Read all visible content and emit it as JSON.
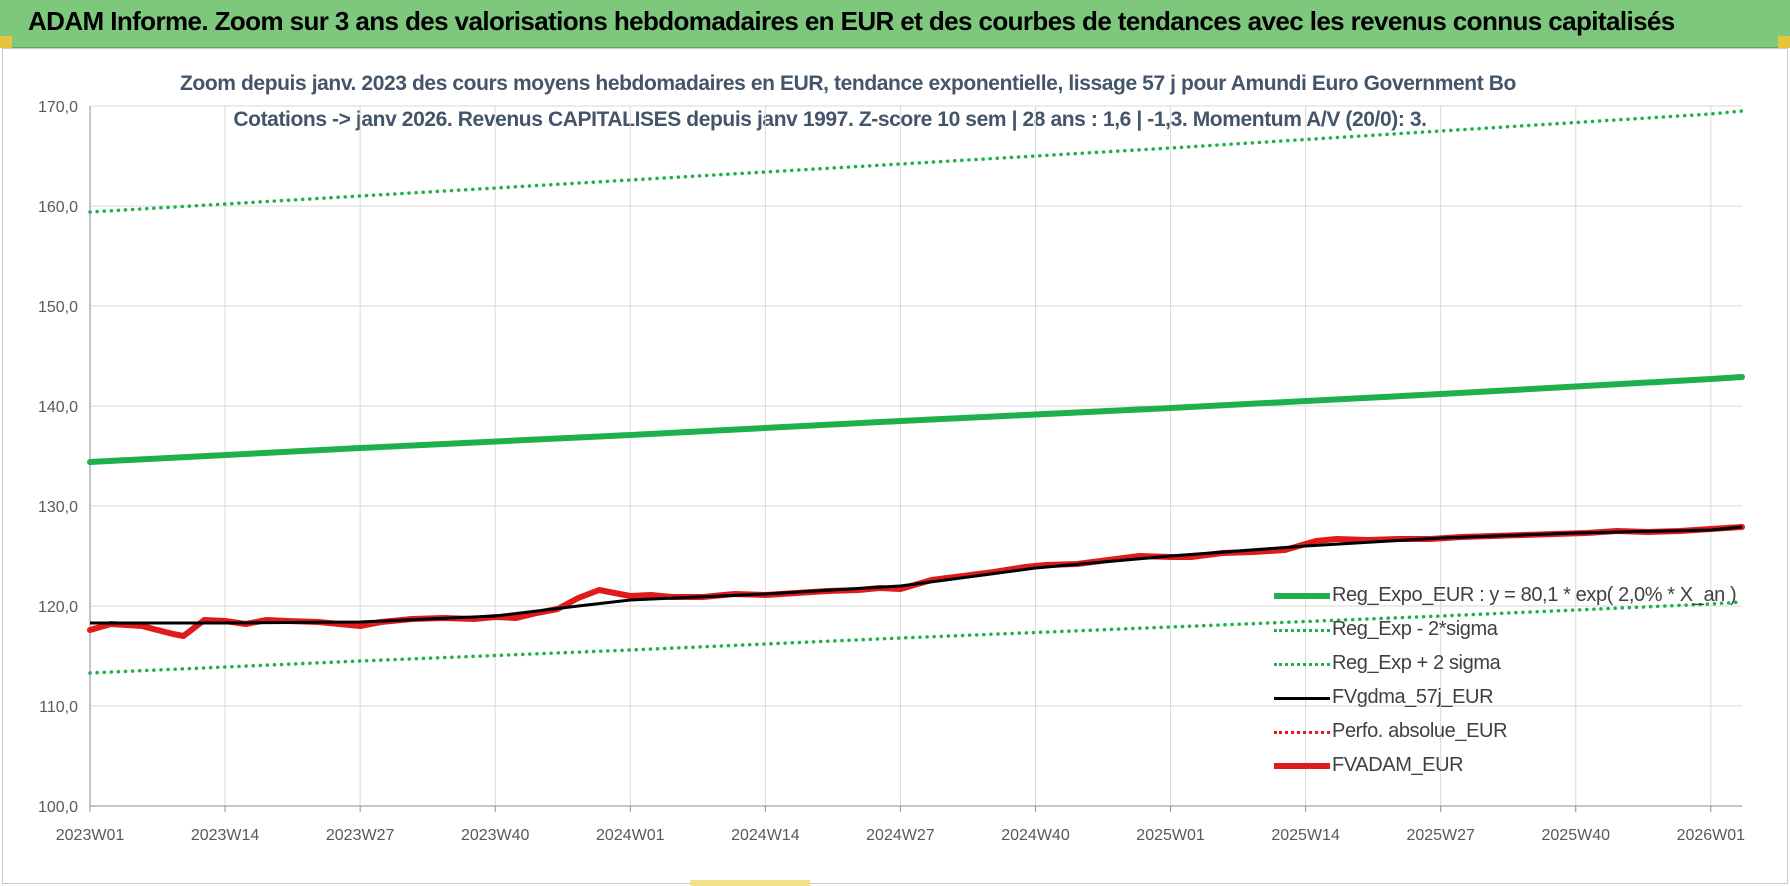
{
  "banner": {
    "title": "ADAM Informe. Zoom sur 3 ans des valorisations hebdomadaires en EUR et des courbes de tendances avec les revenus connus capitalisés",
    "color": "#7ec87e"
  },
  "chart_data": {
    "type": "line",
    "title_line1": "Zoom depuis janv. 2023 des cours moyens hebdomadaires en EUR, tendance exponentielle, lissage 57 j pour Amundi Euro Government Bo",
    "title_line2": "Cotations -> janv 2026. Revenus CAPITALISES depuis janv 1997. Z-score 10 sem | 28 ans : 1,6 | -1,3. Momentum A/V (20/0): 3.",
    "xlabel": "",
    "ylabel": "",
    "ylim": [
      100,
      170
    ],
    "y_ticks": [
      "100,0",
      "110,0",
      "120,0",
      "130,0",
      "140,0",
      "150,0",
      "160,0",
      "170,0"
    ],
    "x_ticks": [
      "2023W01",
      "2023W14",
      "2023W27",
      "2023W40",
      "2024W01",
      "2024W14",
      "2024W27",
      "2024W40",
      "2025W01",
      "2025W14",
      "2025W27",
      "2025W40",
      "2026W01"
    ],
    "grid": true,
    "legend_position": "bottom-right",
    "series": [
      {
        "name": "Reg_Expo_EUR : y = 80,1 * exp( 2,0% * X_an )",
        "color": "#1db04d",
        "style": "solid-thick",
        "x": [
          "2023W01",
          "2023W27",
          "2024W01",
          "2024W27",
          "2025W01",
          "2025W27",
          "2026W01",
          "2026W04"
        ],
        "values": [
          134.4,
          135.8,
          137.1,
          138.5,
          139.8,
          141.2,
          142.7,
          142.9
        ]
      },
      {
        "name": "Reg_Exp - 2*sigma",
        "color": "#1db04d",
        "style": "dotted",
        "x": [
          "2023W01",
          "2023W27",
          "2024W01",
          "2024W27",
          "2025W01",
          "2025W27",
          "2026W01",
          "2026W04"
        ],
        "values": [
          113.3,
          114.5,
          115.6,
          116.8,
          117.9,
          119.0,
          120.2,
          120.4
        ]
      },
      {
        "name": "Reg_Exp + 2 sigma",
        "color": "#1db04d",
        "style": "dotted",
        "x": [
          "2023W01",
          "2023W27",
          "2024W01",
          "2024W27",
          "2025W01",
          "2025W27",
          "2026W01",
          "2026W04"
        ],
        "values": [
          159.4,
          161.0,
          162.6,
          164.2,
          165.8,
          167.5,
          169.2,
          169.5
        ]
      },
      {
        "name": "FVgdma_57j_EUR",
        "color": "#000000",
        "style": "solid",
        "x": [
          "2023W01",
          "2023W14",
          "2023W27",
          "2023W40",
          "2023W48",
          "2024W01",
          "2024W14",
          "2024W27",
          "2024W40",
          "2025W01",
          "2025W14",
          "2025W27",
          "2025W40",
          "2026W01",
          "2026W04"
        ],
        "values": [
          118.3,
          118.3,
          118.4,
          119.0,
          120.0,
          120.6,
          121.2,
          122.0,
          123.8,
          125.0,
          126.0,
          126.8,
          127.3,
          127.6,
          127.9
        ]
      },
      {
        "name": "Perfo. absolue_EUR",
        "color": "#e11b1b",
        "style": "dotted",
        "x": [],
        "values": []
      },
      {
        "name": "FVADAM_EUR",
        "color": "#e11b1b",
        "style": "solid-thick",
        "x": [
          "2023W01",
          "2023W03",
          "2023W06",
          "2023W09",
          "2023W10",
          "2023W12",
          "2023W14",
          "2023W16",
          "2023W18",
          "2023W20",
          "2023W23",
          "2023W27",
          "2023W29",
          "2023W32",
          "2023W35",
          "2023W38",
          "2023W40",
          "2023W42",
          "2023W44",
          "2023W46",
          "2023W48",
          "2023W50",
          "2024W01",
          "2024W03",
          "2024W05",
          "2024W08",
          "2024W11",
          "2024W14",
          "2024W17",
          "2024W20",
          "2024W23",
          "2024W25",
          "2024W27",
          "2024W30",
          "2024W33",
          "2024W36",
          "2024W39",
          "2024W41",
          "2024W44",
          "2024W47",
          "2024W50",
          "2025W01",
          "2025W03",
          "2025W06",
          "2025W09",
          "2025W12",
          "2025W15",
          "2025W17",
          "2025W20",
          "2025W23",
          "2025W26",
          "2025W29",
          "2025W32",
          "2025W35",
          "2025W38",
          "2025W41",
          "2025W44",
          "2025W47",
          "2025W50",
          "2026W01",
          "2026W04"
        ],
        "values": [
          117.6,
          118.2,
          118.0,
          117.2,
          117.0,
          118.6,
          118.5,
          118.2,
          118.6,
          118.5,
          118.4,
          118.0,
          118.4,
          118.7,
          118.8,
          118.7,
          118.9,
          118.8,
          119.3,
          119.7,
          120.8,
          121.6,
          121.0,
          121.1,
          120.9,
          120.9,
          121.2,
          121.1,
          121.3,
          121.5,
          121.6,
          121.8,
          121.7,
          122.6,
          123.0,
          123.4,
          123.9,
          124.1,
          124.2,
          124.6,
          125.0,
          124.9,
          124.9,
          125.3,
          125.4,
          125.6,
          126.5,
          126.7,
          126.6,
          126.7,
          126.7,
          126.9,
          127.0,
          127.1,
          127.2,
          127.3,
          127.5,
          127.4,
          127.5,
          127.7,
          127.9
        ]
      }
    ]
  },
  "legend": {
    "items": [
      {
        "label": "Reg_Expo_EUR : y = 80,1 * exp( 2,0% *  X_an )",
        "color": "#1db04d",
        "style": "solid-thick"
      },
      {
        "label": "Reg_Exp - 2*sigma",
        "color": "#1db04d",
        "style": "dotted"
      },
      {
        "label": "Reg_Exp + 2 sigma",
        "color": "#1db04d",
        "style": "dotted"
      },
      {
        "label": "FVgdma_57j_EUR",
        "color": "#000000",
        "style": "solid"
      },
      {
        "label": "Perfo. absolue_EUR",
        "color": "#e11b1b",
        "style": "dotted"
      },
      {
        "label": "FVADAM_EUR",
        "color": "#e11b1b",
        "style": "solid-thick"
      }
    ]
  }
}
